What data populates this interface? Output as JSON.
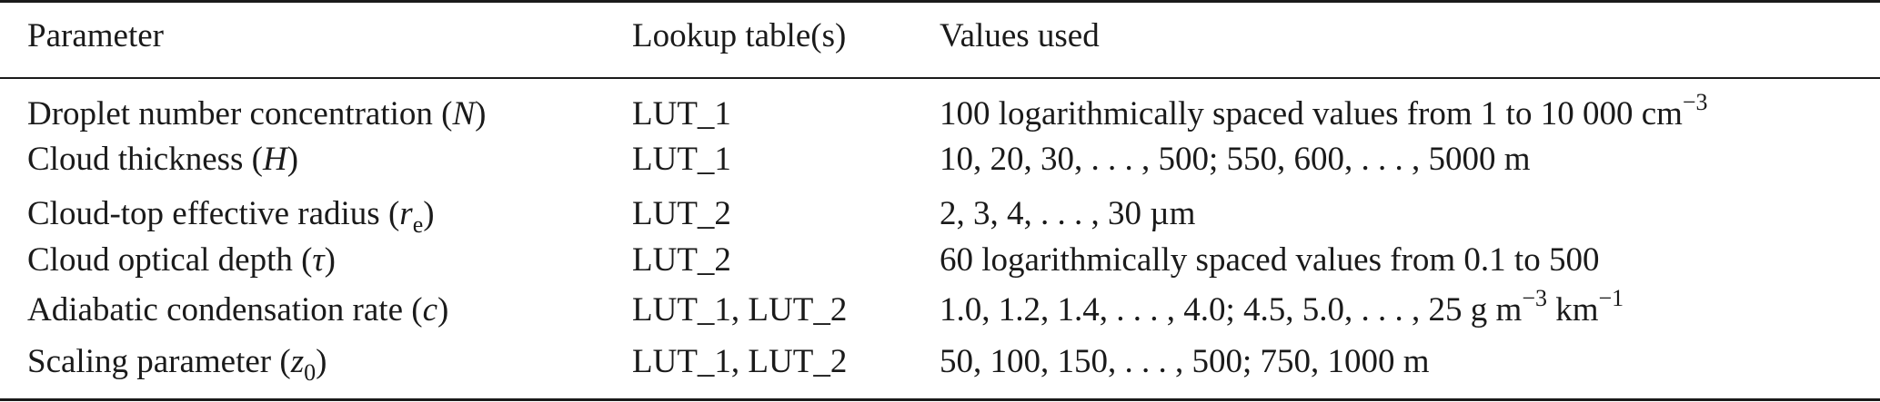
{
  "header": {
    "parameter": "Parameter",
    "lookup": "Lookup table(s)",
    "values": "Values used"
  },
  "rows": [
    {
      "param_text": "Droplet number concentration (",
      "param_symbol": "N",
      "param_sub": "",
      "param_close": ")",
      "lut": "LUT_1",
      "values_text": "100 logarithmically spaced values from 1 to 10 000 cm",
      "values_sup": "−3",
      "values_tail": "",
      "values_sup2": ""
    },
    {
      "param_text": "Cloud thickness (",
      "param_symbol": "H",
      "param_sub": "",
      "param_close": ")",
      "lut": "LUT_1",
      "values_text": "10, 20, 30, . . . , 500; 550, 600, . . . , 5000 m",
      "values_sup": "",
      "values_tail": "",
      "values_sup2": ""
    },
    {
      "param_text": "Cloud-top effective radius (",
      "param_symbol": "r",
      "param_sub": "e",
      "param_close": ")",
      "lut": "LUT_2",
      "values_text": "2, 3, 4, . . . , 30 µm",
      "values_sup": "",
      "values_tail": "",
      "values_sup2": ""
    },
    {
      "param_text": "Cloud optical depth (",
      "param_symbol": "τ",
      "param_sub": "",
      "param_close": ")",
      "lut": "LUT_2",
      "values_text": "60 logarithmically spaced values from 0.1 to 500",
      "values_sup": "",
      "values_tail": "",
      "values_sup2": ""
    },
    {
      "param_text": "Adiabatic condensation rate (",
      "param_symbol": "c",
      "param_sub": "",
      "param_close": ")",
      "lut": "LUT_1, LUT_2",
      "values_text": "1.0, 1.2, 1.4, . . . , 4.0; 4.5, 5.0, . . . , 25 g m",
      "values_sup": "−3",
      "values_tail": " km",
      "values_sup2": "−1"
    },
    {
      "param_text": "Scaling parameter (",
      "param_symbol": "z",
      "param_sub": "0",
      "param_close": ")",
      "lut": "LUT_1, LUT_2",
      "values_text": "50, 100, 150, . . . , 500; 750, 1000 m",
      "values_sup": "",
      "values_tail": "",
      "values_sup2": ""
    }
  ]
}
